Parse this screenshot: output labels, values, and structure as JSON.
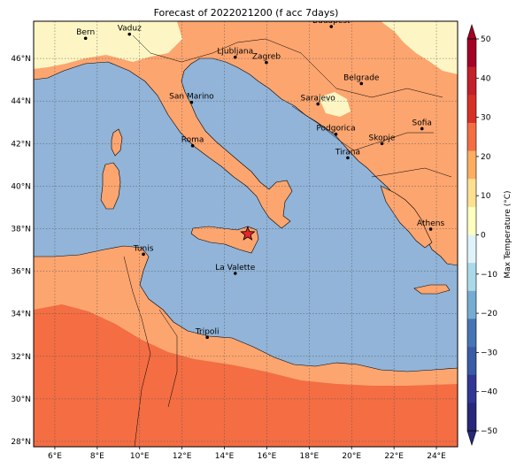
{
  "title": "Forecast of 2022021200 (f acc 7days)",
  "map": {
    "lon_range": [
      5,
      25
    ],
    "lat_range": [
      27.75,
      47.75
    ],
    "lon_ticks": [
      6,
      8,
      10,
      12,
      14,
      16,
      18,
      20,
      22,
      24
    ],
    "lat_ticks": [
      28,
      30,
      32,
      34,
      36,
      38,
      40,
      42,
      44,
      46
    ],
    "lon_tick_labels": [
      "6°E",
      "8°E",
      "10°E",
      "12°E",
      "14°E",
      "16°E",
      "18°E",
      "20°E",
      "22°E",
      "24°E"
    ],
    "lat_tick_labels": [
      "28°N",
      "30°N",
      "32°N",
      "34°N",
      "36°N",
      "38°N",
      "40°N",
      "42°N",
      "44°N",
      "46°N"
    ],
    "grid": true,
    "sea_color": "#91b4d8",
    "land_colors": {
      "cool_10_20": "#fdf6c4",
      "mild_20_30": "#fda56f",
      "warm_30_40": "#f46d43"
    },
    "marker": {
      "name": "star",
      "lon": 15.1,
      "lat": 37.75,
      "color": "#e8262a"
    },
    "cities": [
      {
        "name": "Bern",
        "lon": 7.45,
        "lat": 46.95,
        "dx": 0,
        "dy": -4
      },
      {
        "name": "Vaduz",
        "lon": 9.52,
        "lat": 47.14,
        "dx": 0,
        "dy": -4
      },
      {
        "name": "Budapest",
        "lon": 19.04,
        "lat": 47.5,
        "dx": 0,
        "dy": -4
      },
      {
        "name": "Ljubljana",
        "lon": 14.51,
        "lat": 46.06,
        "dx": 0,
        "dy": -4
      },
      {
        "name": "Zagreb",
        "lon": 15.98,
        "lat": 45.81,
        "dx": 0,
        "dy": -4
      },
      {
        "name": "Belgrade",
        "lon": 20.46,
        "lat": 44.82,
        "dx": 0,
        "dy": -4
      },
      {
        "name": "San Marino",
        "lon": 12.45,
        "lat": 43.94,
        "dx": 0,
        "dy": -4
      },
      {
        "name": "Sarajevo",
        "lon": 18.41,
        "lat": 43.86,
        "dx": 0,
        "dy": -4
      },
      {
        "name": "Sofia",
        "lon": 23.32,
        "lat": 42.7,
        "dx": 0,
        "dy": -4
      },
      {
        "name": "Podgorica",
        "lon": 19.26,
        "lat": 42.44,
        "dx": 0,
        "dy": -4
      },
      {
        "name": "Skopje",
        "lon": 21.43,
        "lat": 42.0,
        "dx": 0,
        "dy": -4
      },
      {
        "name": "Roma",
        "lon": 12.5,
        "lat": 41.9,
        "dx": 0,
        "dy": -4
      },
      {
        "name": "Tirana",
        "lon": 19.82,
        "lat": 41.33,
        "dx": 0,
        "dy": -4
      },
      {
        "name": "Athens",
        "lon": 23.73,
        "lat": 37.98,
        "dx": 0,
        "dy": -4
      },
      {
        "name": "Tunis",
        "lon": 10.18,
        "lat": 36.8,
        "dx": 0,
        "dy": -4
      },
      {
        "name": "La Valette",
        "lon": 14.51,
        "lat": 35.9,
        "dx": 0,
        "dy": -4
      },
      {
        "name": "Tripoli",
        "lon": 13.19,
        "lat": 32.89,
        "dx": 0,
        "dy": -4
      }
    ]
  },
  "colorbar": {
    "label": "Max Temperature (°C)",
    "ticks": [
      50,
      40,
      30,
      20,
      10,
      0,
      -10,
      -20,
      -30,
      -40,
      -50
    ],
    "tick_labels": [
      "50",
      "40",
      "30",
      "20",
      "10",
      "0",
      "−10",
      "−20",
      "−30",
      "−40",
      "−50"
    ],
    "colors_top_to_bottom": [
      "#a50026",
      "#c3202a",
      "#d73027",
      "#f46d43",
      "#fdae61",
      "#fee090",
      "#ffffbf",
      "#e0f3f8",
      "#abd9e9",
      "#74add1",
      "#4575b4",
      "#3a5ba5",
      "#313695",
      "#28287a"
    ]
  }
}
